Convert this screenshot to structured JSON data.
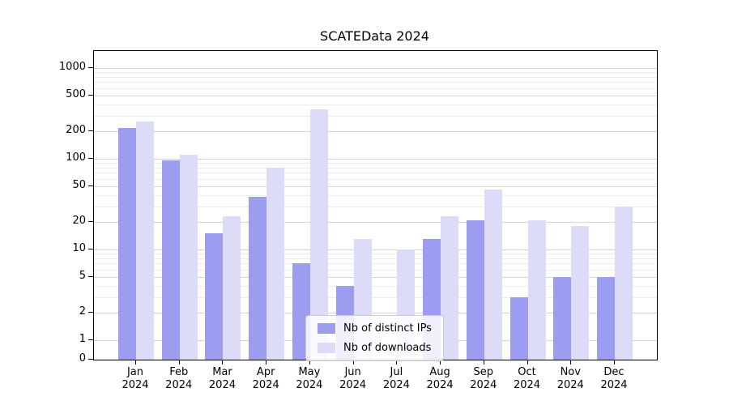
{
  "chart_data": {
    "type": "bar",
    "title": "SCATEData 2024",
    "months": [
      "Jan",
      "Feb",
      "Mar",
      "Apr",
      "May",
      "Jun",
      "Jul",
      "Aug",
      "Sep",
      "Oct",
      "Nov",
      "Dec"
    ],
    "year_label": "2024",
    "series": [
      {
        "name": "Nb of distinct IPs",
        "color": "#9c9cf0",
        "values": [
          220,
          95,
          15,
          38,
          7,
          4,
          0,
          13,
          21,
          3,
          5,
          5
        ]
      },
      {
        "name": "Nb of downloads",
        "color": "#dddcf8",
        "values": [
          255,
          110,
          23,
          80,
          350,
          13,
          10,
          23,
          46,
          21,
          18,
          30
        ]
      }
    ],
    "axes": {
      "y_scale": "symlog",
      "y_ticks": [
        0,
        1,
        2,
        5,
        10,
        20,
        50,
        100,
        200,
        500,
        1000
      ],
      "y_minor_gridlines": [
        3,
        4,
        6,
        7,
        8,
        9,
        30,
        40,
        60,
        70,
        80,
        90,
        300,
        400,
        600,
        700,
        800,
        900
      ],
      "ylim": [
        0,
        1500
      ],
      "grid": true
    },
    "legend": {
      "position": "lower center"
    }
  }
}
